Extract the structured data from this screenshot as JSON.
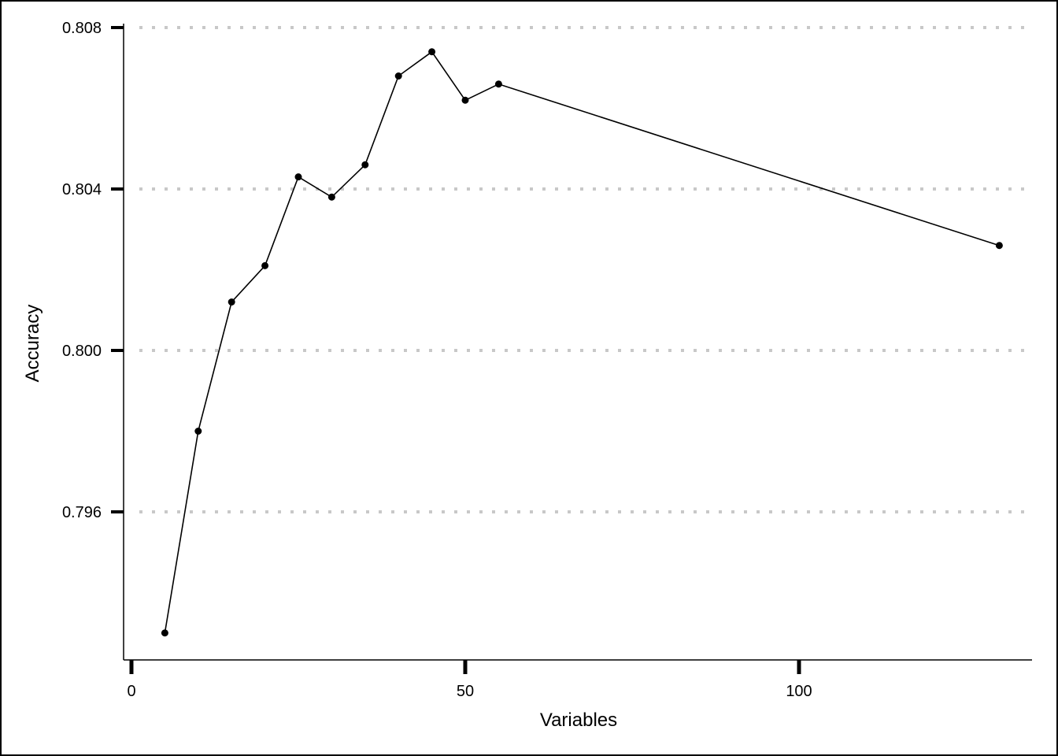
{
  "chart_data": {
    "type": "line",
    "title": "",
    "xlabel": "Variables",
    "ylabel": "Accuracy",
    "xlim": [
      -2,
      135
    ],
    "ylim": [
      0.7924,
      0.8081
    ],
    "x_ticks": [
      0,
      50,
      100
    ],
    "x_tick_labels": [
      "0",
      "50",
      "100"
    ],
    "y_ticks": [
      0.796,
      0.8,
      0.804,
      0.808
    ],
    "y_tick_labels": [
      "0.796",
      "0.800",
      "0.804",
      "0.808"
    ],
    "grid": "horizontal dotted",
    "series": [
      {
        "x": [
          5,
          10,
          15,
          20,
          25,
          30,
          35,
          40,
          45,
          50,
          55,
          130
        ],
        "y": [
          0.793,
          0.798,
          0.8012,
          0.8021,
          0.8043,
          0.8038,
          0.8046,
          0.8068,
          0.8074,
          0.8062,
          0.8066,
          0.8026
        ],
        "color": "#000000"
      }
    ]
  }
}
